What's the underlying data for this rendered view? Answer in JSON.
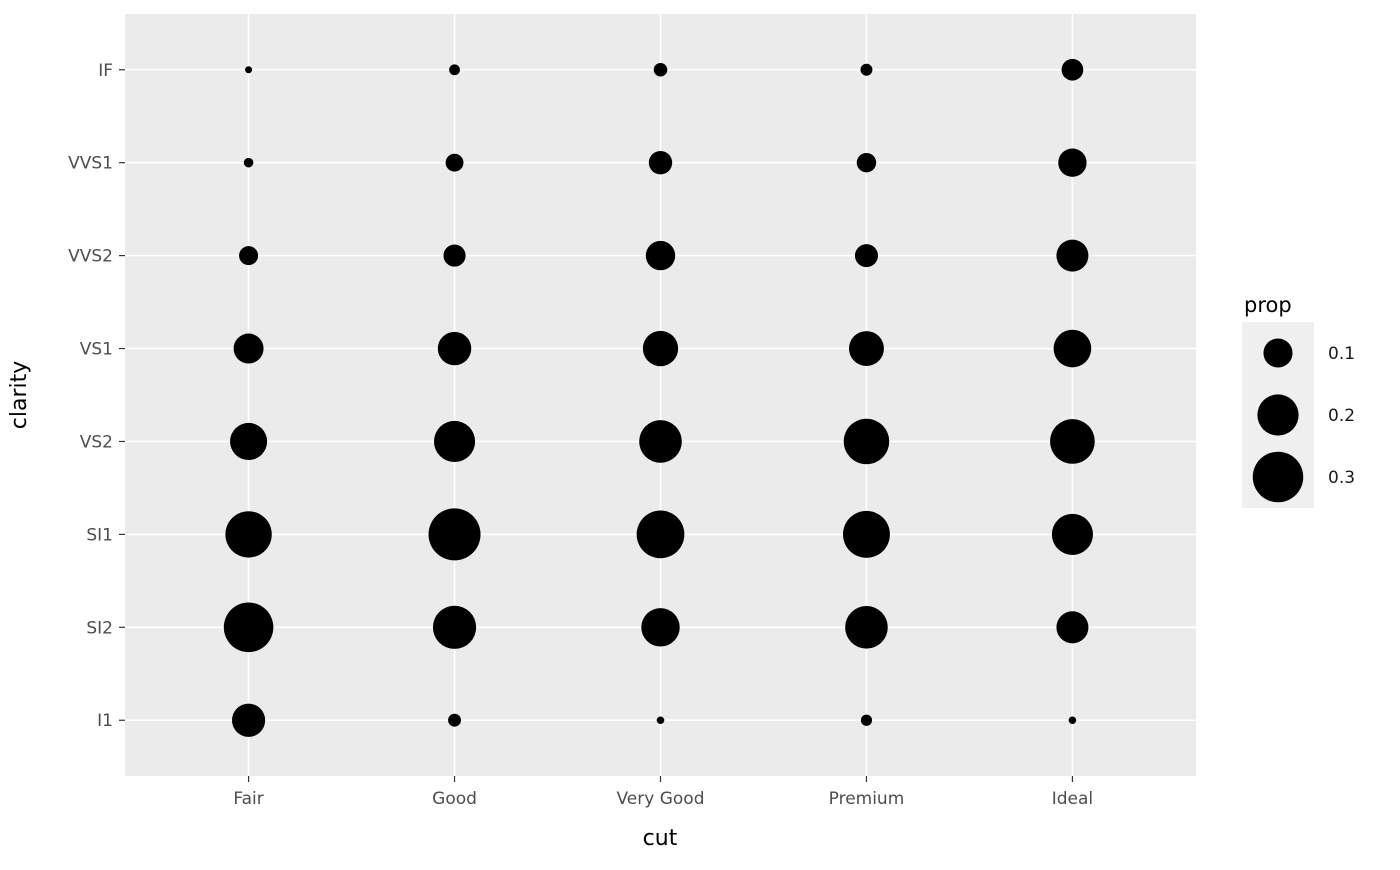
{
  "chart_data": {
    "type": "scatter",
    "subtype": "bubble-size-encoded",
    "title": "",
    "xlabel": "cut",
    "ylabel": "clarity",
    "x_categories": [
      "Fair",
      "Good",
      "Very Good",
      "Premium",
      "Ideal"
    ],
    "y_categories_bottom_to_top": [
      "I1",
      "SI2",
      "SI1",
      "VS2",
      "VS1",
      "VVS2",
      "VVS1",
      "IF"
    ],
    "size_legend": {
      "title": "prop",
      "values": [
        0.1,
        0.2,
        0.3
      ],
      "position": "right"
    },
    "series": [
      {
        "cut": "Fair",
        "prop_by_clarity": [
          0.13,
          0.289,
          0.253,
          0.162,
          0.106,
          0.043,
          0.011,
          0.006
        ]
      },
      {
        "cut": "Good",
        "prop_by_clarity": [
          0.02,
          0.22,
          0.318,
          0.199,
          0.132,
          0.058,
          0.038,
          0.014
        ]
      },
      {
        "cut": "Very Good",
        "prop_by_clarity": [
          0.007,
          0.174,
          0.268,
          0.214,
          0.147,
          0.102,
          0.065,
          0.022
        ]
      },
      {
        "cut": "Premium",
        "prop_by_clarity": [
          0.015,
          0.214,
          0.259,
          0.243,
          0.144,
          0.063,
          0.045,
          0.017
        ]
      },
      {
        "cut": "Ideal",
        "prop_by_clarity": [
          0.007,
          0.121,
          0.199,
          0.235,
          0.167,
          0.121,
          0.095,
          0.056
        ]
      }
    ],
    "size_scale": {
      "domain": [
        0.006,
        0.318
      ],
      "radius_px": [
        3.5,
        26
      ],
      "mapping": "sqrt-area"
    },
    "colors": {
      "panel_bg": "#EBEBEB",
      "grid": "#FFFFFF",
      "point": "#000000",
      "tick_label": "#4D4D4D",
      "tick_mark": "#333333",
      "legend_key_bg": "#EFEFEF",
      "legend_label": "#1A1A1A"
    },
    "grid": "major-on",
    "legend_position": "right"
  }
}
